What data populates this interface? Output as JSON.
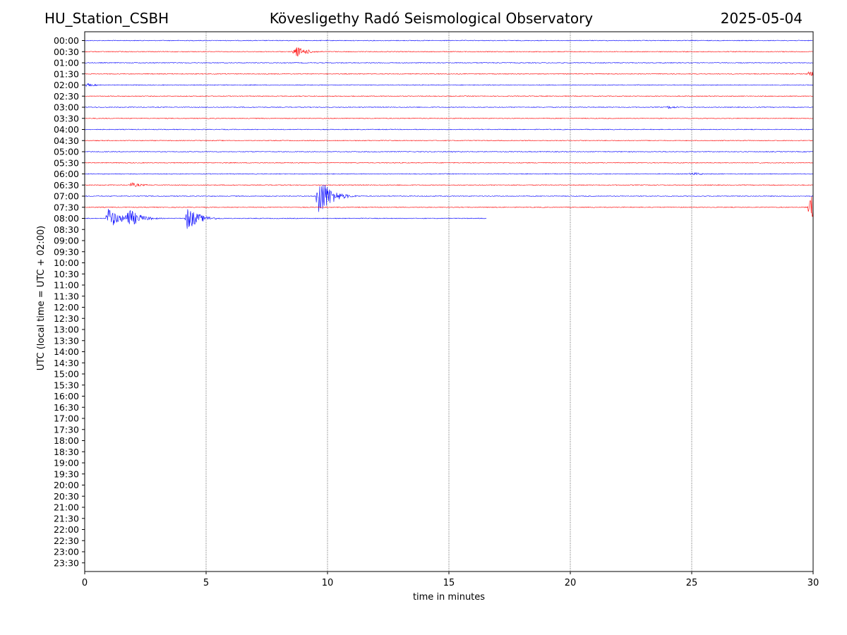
{
  "header": {
    "station": "HU_Station_CSBH",
    "observatory": "Kövesligethy Radó Seismological Observatory",
    "date": "2025-05-04"
  },
  "chart_data": {
    "type": "line",
    "title": "Kövesligethy Radó Seismological Observatory",
    "xlabel": "time in minutes",
    "ylabel": "UTC (local time = UTC + 02:00)",
    "xlim": [
      0,
      30
    ],
    "xticks": [
      0,
      5,
      10,
      15,
      20,
      25,
      30
    ],
    "grid": "vertical dotted at 5-minute intervals",
    "colors": {
      "even_hour_rows": "#0000ff",
      "half_hour_rows": "#ff0000"
    },
    "rows": [
      "00:00",
      "00:30",
      "01:00",
      "01:30",
      "02:00",
      "02:30",
      "03:00",
      "03:30",
      "04:00",
      "04:30",
      "05:00",
      "05:30",
      "06:00",
      "06:30",
      "07:00",
      "07:30",
      "08:00",
      "08:30",
      "09:00",
      "09:30",
      "10:00",
      "10:30",
      "11:00",
      "11:30",
      "12:00",
      "12:30",
      "13:00",
      "13:30",
      "14:00",
      "14:30",
      "15:00",
      "15:30",
      "16:00",
      "16:30",
      "17:00",
      "17:30",
      "18:00",
      "18:30",
      "19:00",
      "19:30",
      "20:00",
      "20:30",
      "21:00",
      "21:30",
      "22:00",
      "22:30",
      "23:00",
      "23:30"
    ],
    "traces": [
      {
        "row": "00:00",
        "end_minute": 30,
        "events": []
      },
      {
        "row": "00:30",
        "end_minute": 30,
        "events": [
          {
            "minute": 8.65,
            "amplitude": 0.75
          }
        ]
      },
      {
        "row": "01:00",
        "end_minute": 30,
        "events": []
      },
      {
        "row": "01:30",
        "end_minute": 30,
        "events": [
          {
            "minute": 29.8,
            "amplitude": 0.35
          }
        ]
      },
      {
        "row": "02:00",
        "end_minute": 30,
        "events": [
          {
            "minute": 0.05,
            "amplitude": 0.2
          }
        ]
      },
      {
        "row": "02:30",
        "end_minute": 30,
        "events": []
      },
      {
        "row": "03:00",
        "end_minute": 30,
        "events": [
          {
            "minute": 24.0,
            "amplitude": 0.2
          }
        ]
      },
      {
        "row": "03:30",
        "end_minute": 30,
        "events": []
      },
      {
        "row": "04:00",
        "end_minute": 30,
        "events": []
      },
      {
        "row": "04:30",
        "end_minute": 30,
        "events": []
      },
      {
        "row": "05:00",
        "end_minute": 30,
        "events": []
      },
      {
        "row": "05:30",
        "end_minute": 30,
        "events": []
      },
      {
        "row": "06:00",
        "end_minute": 30,
        "events": [
          {
            "minute": 24.95,
            "amplitude": 0.25
          }
        ]
      },
      {
        "row": "06:30",
        "end_minute": 30,
        "events": [
          {
            "minute": 1.9,
            "amplitude": 0.3
          }
        ]
      },
      {
        "row": "07:00",
        "end_minute": 30,
        "events": [
          {
            "minute": 9.6,
            "amplitude": 3.0
          }
        ]
      },
      {
        "row": "07:30",
        "end_minute": 30,
        "events": [
          {
            "minute": 29.85,
            "amplitude": 1.6
          }
        ]
      },
      {
        "row": "08:00",
        "end_minute": 16.55,
        "events": [
          {
            "minute": 0.95,
            "amplitude": 1.4
          },
          {
            "minute": 1.75,
            "amplitude": 1.4
          },
          {
            "minute": 4.2,
            "amplitude": 1.6
          },
          {
            "minute": 5.15,
            "amplitude": 0.15
          }
        ]
      }
    ]
  }
}
